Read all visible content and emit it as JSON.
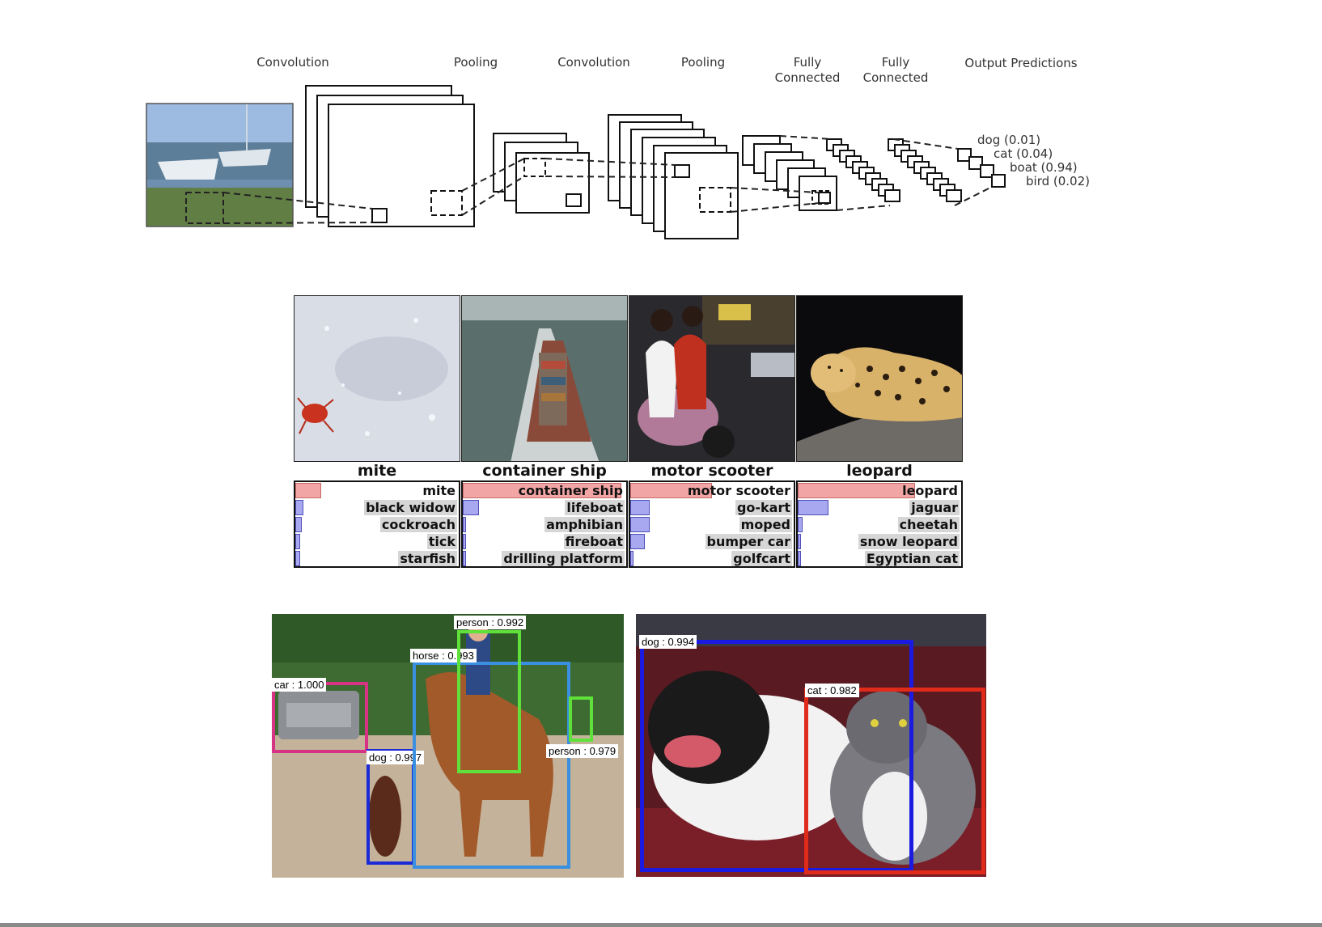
{
  "cnn_diagram": {
    "stages": [
      {
        "id": "conv1",
        "label": "Convolution"
      },
      {
        "id": "pool1",
        "label": "Pooling"
      },
      {
        "id": "conv2",
        "label": "Convolution"
      },
      {
        "id": "pool2",
        "label": "Pooling"
      },
      {
        "id": "fc1",
        "label": "Fully\nConnected"
      },
      {
        "id": "fc2",
        "label": "Fully\nConnected"
      },
      {
        "id": "out",
        "label": "Output Predictions"
      }
    ],
    "predictions": [
      {
        "label": "dog (0.01)"
      },
      {
        "label": "cat (0.04)"
      },
      {
        "label": "boat (0.94)"
      },
      {
        "label": "bird (0.02)"
      }
    ]
  },
  "classification": [
    {
      "title": "mite",
      "predictions": [
        {
          "label": "mite",
          "score": 0.16,
          "correct": true
        },
        {
          "label": "black widow",
          "score": 0.05
        },
        {
          "label": "cockroach",
          "score": 0.04
        },
        {
          "label": "tick",
          "score": 0.03
        },
        {
          "label": "starfish",
          "score": 0.03
        }
      ]
    },
    {
      "title": "container ship",
      "predictions": [
        {
          "label": "container ship",
          "score": 0.97,
          "correct": true
        },
        {
          "label": "lifeboat",
          "score": 0.1
        },
        {
          "label": "amphibian",
          "score": 0.01
        },
        {
          "label": "fireboat",
          "score": 0.01
        },
        {
          "label": "drilling platform",
          "score": 0.01
        }
      ]
    },
    {
      "title": "motor scooter",
      "predictions": [
        {
          "label": "motor scooter",
          "score": 0.5,
          "correct": true
        },
        {
          "label": "go-kart",
          "score": 0.12
        },
        {
          "label": "moped",
          "score": 0.12
        },
        {
          "label": "bumper car",
          "score": 0.09
        },
        {
          "label": "golfcart",
          "score": 0.02
        }
      ]
    },
    {
      "title": "leopard",
      "predictions": [
        {
          "label": "leopard",
          "score": 0.72,
          "correct": true
        },
        {
          "label": "jaguar",
          "score": 0.19
        },
        {
          "label": "cheetah",
          "score": 0.03
        },
        {
          "label": "snow leopard",
          "score": 0.01
        },
        {
          "label": "Egyptian cat",
          "score": 0.01
        }
      ]
    }
  ],
  "detection": {
    "image1": {
      "boxes": [
        {
          "label": "car : 1.000",
          "color": "#d63384"
        },
        {
          "label": "dog : 0.997",
          "color": "#1a2ad6"
        },
        {
          "label": "horse : 0.993",
          "color": "#3b8fe0"
        },
        {
          "label": "person : 0.992",
          "color": "#5fe03a"
        },
        {
          "label": "person : 0.979",
          "color": "#5fe03a"
        }
      ]
    },
    "image2": {
      "boxes": [
        {
          "label": "dog : 0.994",
          "color": "#1a1ae0"
        },
        {
          "label": "cat : 0.982",
          "color": "#e02a1a"
        }
      ]
    }
  }
}
